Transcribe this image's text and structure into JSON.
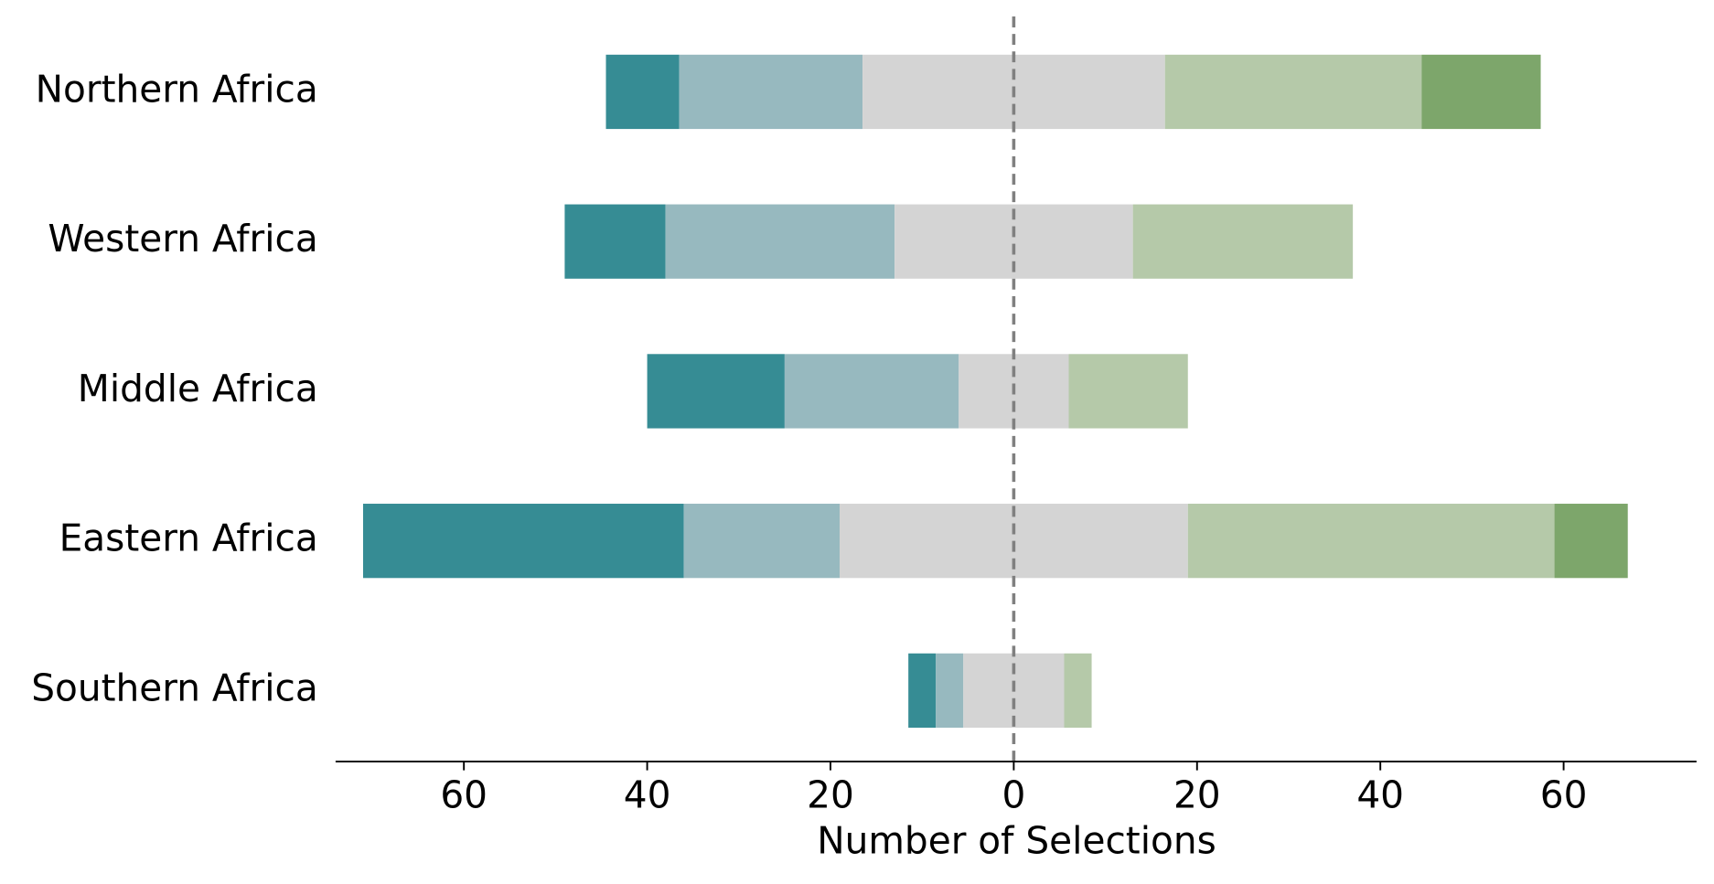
{
  "chart_data": {
    "type": "diverging_bar",
    "xlabel": "Number of Selections",
    "categories": [
      "Northern Africa",
      "Western Africa",
      "Middle Africa",
      "Eastern Africa",
      "Southern Africa"
    ],
    "series": [
      {
        "color": "#368c94",
        "values": [
          8,
          11,
          15,
          35,
          3
        ]
      },
      {
        "color": "#97b9bf",
        "values": [
          20,
          25,
          19,
          17,
          3
        ]
      },
      {
        "color": "#d4d4d4",
        "values": [
          33,
          26,
          12,
          38,
          11
        ]
      },
      {
        "color": "#b5c9a9",
        "values": [
          28,
          24,
          13,
          40,
          3
        ]
      },
      {
        "color": "#7da66b",
        "values": [
          13,
          0,
          0,
          8,
          0
        ]
      }
    ],
    "neutral_series": 2,
    "xlim": [
      -74,
      74.5
    ],
    "xticks": [
      {
        "value": -60,
        "label": "60"
      },
      {
        "value": -40,
        "label": "40"
      },
      {
        "value": -20,
        "label": "20"
      },
      0,
      20,
      40,
      60
    ],
    "zero_line": true
  }
}
